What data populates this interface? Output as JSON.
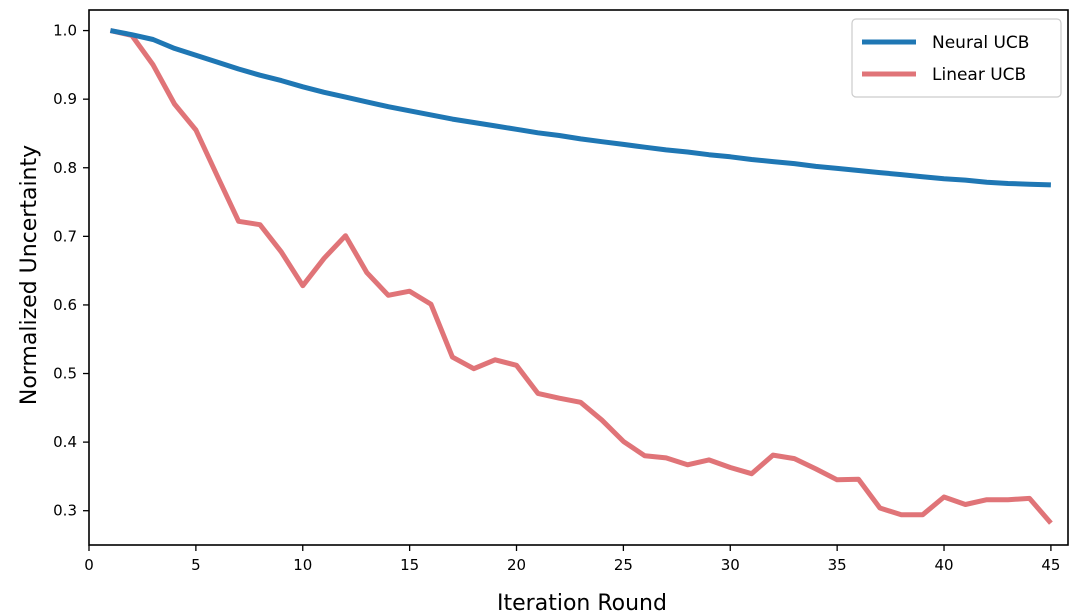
{
  "chart_data": {
    "type": "line",
    "title": "",
    "xlabel": "Iteration Round",
    "ylabel": "Normalized Uncertainty",
    "xlim": [
      0,
      45.8
    ],
    "ylim": [
      0.25,
      1.03
    ],
    "xticks": [
      0,
      5,
      10,
      15,
      20,
      25,
      30,
      35,
      40,
      45
    ],
    "yticks": [
      0.3,
      0.4,
      0.5,
      0.6,
      0.7,
      0.8,
      0.9,
      1.0
    ],
    "ytick_labels": [
      "0.3",
      "0.4",
      "0.5",
      "0.6",
      "0.7",
      "0.8",
      "0.9",
      "1.0"
    ],
    "grid": false,
    "legend_position": "top-right",
    "x": [
      1,
      2,
      3,
      4,
      5,
      6,
      7,
      8,
      9,
      10,
      11,
      12,
      13,
      14,
      15,
      16,
      17,
      18,
      19,
      20,
      21,
      22,
      23,
      24,
      25,
      26,
      27,
      28,
      29,
      30,
      31,
      32,
      33,
      34,
      35,
      36,
      37,
      38,
      39,
      40,
      41,
      42,
      43,
      44,
      45
    ],
    "series": [
      {
        "name": "Neural UCB",
        "color": "#1f77b4",
        "values": [
          1.0,
          0.994,
          0.987,
          0.974,
          0.964,
          0.954,
          0.944,
          0.935,
          0.927,
          0.918,
          0.91,
          0.903,
          0.896,
          0.889,
          0.883,
          0.877,
          0.871,
          0.866,
          0.861,
          0.856,
          0.851,
          0.847,
          0.842,
          0.838,
          0.834,
          0.83,
          0.826,
          0.823,
          0.819,
          0.816,
          0.812,
          0.809,
          0.806,
          0.802,
          0.799,
          0.796,
          0.793,
          0.79,
          0.787,
          0.784,
          0.782,
          0.779,
          0.777,
          0.776,
          0.775
        ]
      },
      {
        "name": "Linear UCB",
        "color": "#e07478",
        "values": [
          1.0,
          0.993,
          0.95,
          0.893,
          0.855,
          0.788,
          0.722,
          0.717,
          0.677,
          0.628,
          0.668,
          0.701,
          0.647,
          0.614,
          0.62,
          0.601,
          0.524,
          0.507,
          0.52,
          0.512,
          0.471,
          0.464,
          0.458,
          0.432,
          0.401,
          0.38,
          0.377,
          0.367,
          0.374,
          0.363,
          0.354,
          0.381,
          0.376,
          0.361,
          0.345,
          0.346,
          0.304,
          0.294,
          0.294,
          0.32,
          0.309,
          0.316,
          0.316,
          0.318,
          0.282
        ]
      }
    ]
  }
}
